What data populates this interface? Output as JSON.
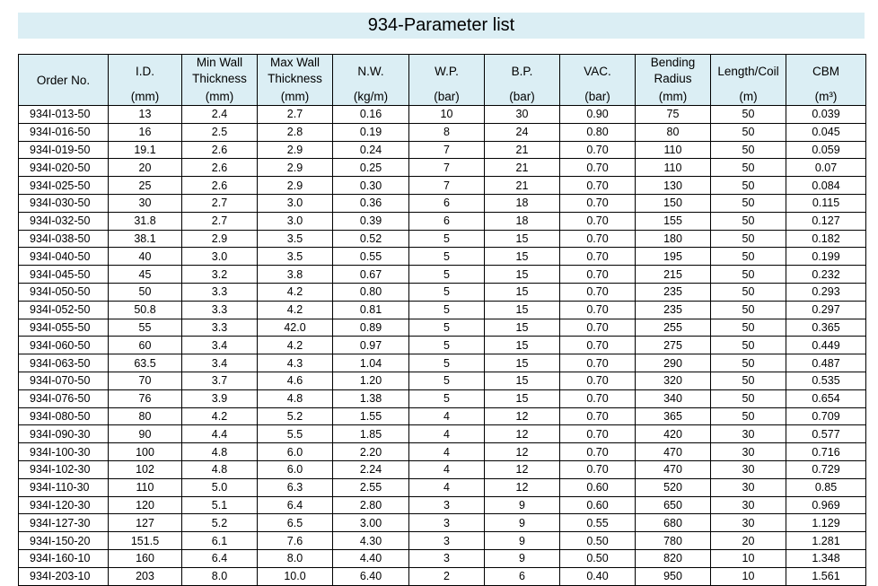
{
  "title": "934-Parameter list",
  "columns": [
    {
      "lines": [
        "Order No."
      ],
      "unit": ""
    },
    {
      "lines": [
        "I.D."
      ],
      "unit": "(mm)"
    },
    {
      "lines": [
        "Min Wall",
        "Thickness"
      ],
      "unit": "(mm)"
    },
    {
      "lines": [
        "Max Wall",
        "Thickness"
      ],
      "unit": "(mm)"
    },
    {
      "lines": [
        "N.W."
      ],
      "unit": "(kg/m)"
    },
    {
      "lines": [
        "W.P."
      ],
      "unit": "(bar)"
    },
    {
      "lines": [
        "B.P."
      ],
      "unit": "(bar)"
    },
    {
      "lines": [
        "VAC."
      ],
      "unit": "(bar)"
    },
    {
      "lines": [
        "Bending",
        "Radius"
      ],
      "unit": "(mm)"
    },
    {
      "lines": [
        "Length/Coil"
      ],
      "unit": "(m)"
    },
    {
      "lines": [
        "CBM"
      ],
      "unit": "(m³)"
    }
  ],
  "rows": [
    [
      "934I-013-50",
      "13",
      "2.4",
      "2.7",
      "0.16",
      "10",
      "30",
      "0.90",
      "75",
      "50",
      "0.039"
    ],
    [
      "934I-016-50",
      "16",
      "2.5",
      "2.8",
      "0.19",
      "8",
      "24",
      "0.80",
      "80",
      "50",
      "0.045"
    ],
    [
      "934I-019-50",
      "19.1",
      "2.6",
      "2.9",
      "0.24",
      "7",
      "21",
      "0.70",
      "110",
      "50",
      "0.059"
    ],
    [
      "934I-020-50",
      "20",
      "2.6",
      "2.9",
      "0.25",
      "7",
      "21",
      "0.70",
      "110",
      "50",
      "0.07"
    ],
    [
      "934I-025-50",
      "25",
      "2.6",
      "2.9",
      "0.30",
      "7",
      "21",
      "0.70",
      "130",
      "50",
      "0.084"
    ],
    [
      "934I-030-50",
      "30",
      "2.7",
      "3.0",
      "0.36",
      "6",
      "18",
      "0.70",
      "150",
      "50",
      "0.115"
    ],
    [
      "934I-032-50",
      "31.8",
      "2.7",
      "3.0",
      "0.39",
      "6",
      "18",
      "0.70",
      "155",
      "50",
      "0.127"
    ],
    [
      "934I-038-50",
      "38.1",
      "2.9",
      "3.5",
      "0.52",
      "5",
      "15",
      "0.70",
      "180",
      "50",
      "0.182"
    ],
    [
      "934I-040-50",
      "40",
      "3.0",
      "3.5",
      "0.55",
      "5",
      "15",
      "0.70",
      "195",
      "50",
      "0.199"
    ],
    [
      "934I-045-50",
      "45",
      "3.2",
      "3.8",
      "0.67",
      "5",
      "15",
      "0.70",
      "215",
      "50",
      "0.232"
    ],
    [
      "934I-050-50",
      "50",
      "3.3",
      "4.2",
      "0.80",
      "5",
      "15",
      "0.70",
      "235",
      "50",
      "0.293"
    ],
    [
      "934I-052-50",
      "50.8",
      "3.3",
      "4.2",
      "0.81",
      "5",
      "15",
      "0.70",
      "235",
      "50",
      "0.297"
    ],
    [
      "934I-055-50",
      "55",
      "3.3",
      "42.0",
      "0.89",
      "5",
      "15",
      "0.70",
      "255",
      "50",
      "0.365"
    ],
    [
      "934I-060-50",
      "60",
      "3.4",
      "4.2",
      "0.97",
      "5",
      "15",
      "0.70",
      "275",
      "50",
      "0.449"
    ],
    [
      "934I-063-50",
      "63.5",
      "3.4",
      "4.3",
      "1.04",
      "5",
      "15",
      "0.70",
      "290",
      "50",
      "0.487"
    ],
    [
      "934I-070-50",
      "70",
      "3.7",
      "4.6",
      "1.20",
      "5",
      "15",
      "0.70",
      "320",
      "50",
      "0.535"
    ],
    [
      "934I-076-50",
      "76",
      "3.9",
      "4.8",
      "1.38",
      "5",
      "15",
      "0.70",
      "340",
      "50",
      "0.654"
    ],
    [
      "934I-080-50",
      "80",
      "4.2",
      "5.2",
      "1.55",
      "4",
      "12",
      "0.70",
      "365",
      "50",
      "0.709"
    ],
    [
      "934I-090-30",
      "90",
      "4.4",
      "5.5",
      "1.85",
      "4",
      "12",
      "0.70",
      "420",
      "30",
      "0.577"
    ],
    [
      "934I-100-30",
      "100",
      "4.8",
      "6.0",
      "2.20",
      "4",
      "12",
      "0.70",
      "470",
      "30",
      "0.716"
    ],
    [
      "934I-102-30",
      "102",
      "4.8",
      "6.0",
      "2.24",
      "4",
      "12",
      "0.70",
      "470",
      "30",
      "0.729"
    ],
    [
      "934I-110-30",
      "110",
      "5.0",
      "6.3",
      "2.55",
      "4",
      "12",
      "0.60",
      "520",
      "30",
      "0.85"
    ],
    [
      "934I-120-30",
      "120",
      "5.1",
      "6.4",
      "2.80",
      "3",
      "9",
      "0.60",
      "650",
      "30",
      "0.969"
    ],
    [
      "934I-127-30",
      "127",
      "5.2",
      "6.5",
      "3.00",
      "3",
      "9",
      "0.55",
      "680",
      "30",
      "1.129"
    ],
    [
      "934I-150-20",
      "151.5",
      "6.1",
      "7.6",
      "4.30",
      "3",
      "9",
      "0.50",
      "780",
      "20",
      "1.281"
    ],
    [
      "934I-160-10",
      "160",
      "6.4",
      "8.0",
      "4.40",
      "3",
      "9",
      "0.50",
      "820",
      "10",
      "1.348"
    ],
    [
      "934I-203-10",
      "203",
      "8.0",
      "10.0",
      "6.40",
      "2",
      "6",
      "0.40",
      "950",
      "10",
      "1.561"
    ]
  ]
}
